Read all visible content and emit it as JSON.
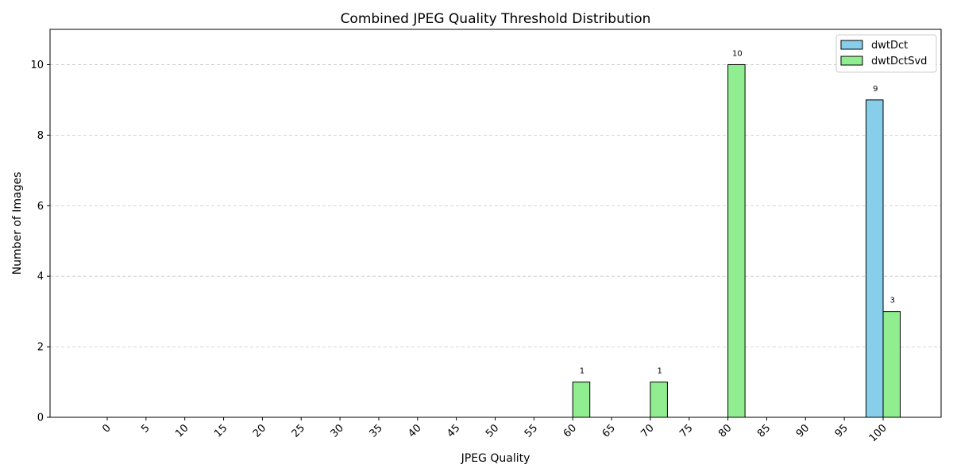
{
  "chart_data": {
    "type": "bar",
    "title": "Combined JPEG Quality Threshold Distribution",
    "xlabel": "JPEG Quality",
    "ylabel": "Number of Images",
    "categories": [
      "0",
      "5",
      "10",
      "15",
      "20",
      "25",
      "30",
      "35",
      "40",
      "45",
      "50",
      "55",
      "60",
      "65",
      "70",
      "75",
      "80",
      "85",
      "90",
      "95",
      "100"
    ],
    "series": [
      {
        "name": "dwtDct",
        "color": "#87ceeb",
        "values": [
          0,
          0,
          0,
          0,
          0,
          0,
          0,
          0,
          0,
          0,
          0,
          0,
          0,
          0,
          0,
          0,
          0,
          0,
          0,
          0,
          9
        ]
      },
      {
        "name": "dwtDctSvd",
        "color": "#90ee90",
        "values": [
          0,
          0,
          0,
          0,
          0,
          0,
          0,
          0,
          0,
          0,
          0,
          0,
          1,
          0,
          1,
          0,
          10,
          0,
          0,
          0,
          3
        ]
      }
    ],
    "ylim": [
      0,
      11
    ],
    "yticks": [
      0,
      2,
      4,
      6,
      8,
      10
    ],
    "grid": "y-dashed",
    "legend": "top-right",
    "data_labels": "non-zero"
  }
}
